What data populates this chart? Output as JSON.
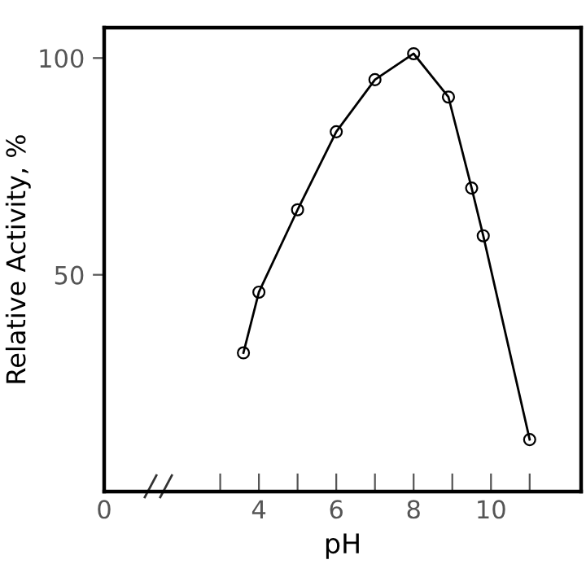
{
  "chart_data": {
    "type": "line",
    "xlabel": "pH",
    "ylabel": "Relative Activity, %",
    "x": [
      3.6,
      4,
      5,
      6,
      7,
      8,
      8.9,
      9.5,
      9.8,
      11
    ],
    "series": [
      {
        "color": "#000000",
        "values": [
          32,
          46,
          65,
          83,
          95,
          101,
          91,
          70,
          59,
          12
        ]
      }
    ],
    "xlim": [
      0,
      12.33
    ],
    "ylim": [
      0,
      107
    ],
    "xticks": [
      0,
      {
        "value": 3,
        "label": null
      },
      4,
      {
        "value": 5,
        "label": null
      },
      6,
      {
        "value": 7,
        "label": null
      },
      8,
      {
        "value": 9,
        "label": null
      },
      10,
      {
        "value": 11,
        "label": null
      }
    ],
    "yticks": [
      50,
      100
    ],
    "marker": "circle",
    "line_style": "solid",
    "grid": false,
    "legend": false
  }
}
